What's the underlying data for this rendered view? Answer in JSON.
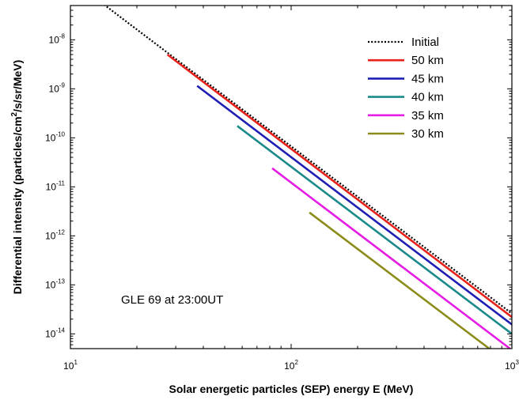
{
  "chart_data": {
    "type": "line",
    "xlabel": "Solar energetic particles (SEP) energy E (MeV)",
    "ylabel": {
      "before": "Differential intensity (particles/cm",
      "sup": "2",
      "after": "/s/sr/MeV)"
    },
    "xscale": "log",
    "yscale": "log",
    "xlim": [
      10,
      1000
    ],
    "ylim": [
      5e-15,
      5e-08
    ],
    "x_ticks": [
      {
        "value": 10,
        "base": "10",
        "exp": "1"
      },
      {
        "value": 100,
        "base": "10",
        "exp": "2"
      },
      {
        "value": 1000,
        "base": "10",
        "exp": "3"
      }
    ],
    "y_ticks": [
      {
        "value": 1e-08,
        "base": "10",
        "exp": "-8"
      },
      {
        "value": 1e-09,
        "base": "10",
        "exp": "-9"
      },
      {
        "value": 1e-10,
        "base": "10",
        "exp": "-10"
      },
      {
        "value": 1e-11,
        "base": "10",
        "exp": "-11"
      },
      {
        "value": 1e-12,
        "base": "10",
        "exp": "-12"
      },
      {
        "value": 1e-13,
        "base": "10",
        "exp": "-13"
      },
      {
        "value": 1e-14,
        "base": "10",
        "exp": "-14"
      }
    ],
    "grid": false,
    "legend_position": "top-right",
    "annotation": "GLE 69 at 23:00UT",
    "series": [
      {
        "name": "Initial",
        "color": "#000000",
        "dash": "dotted",
        "x": [
          14.2,
          1000
        ],
        "y": [
          5.2e-08,
          2.6e-14
        ]
      },
      {
        "name": "50 km",
        "color": "#e8211b",
        "dash": "solid",
        "x": [
          27.5,
          1000
        ],
        "y": [
          5e-09,
          2.2e-14
        ]
      },
      {
        "name": "45 km",
        "color": "#1f1fb4",
        "dash": "solid",
        "x": [
          37.5,
          1000
        ],
        "y": [
          1.15e-09,
          1.55e-14
        ]
      },
      {
        "name": "40 km",
        "color": "#1a8a8a",
        "dash": "solid",
        "x": [
          57,
          1000
        ],
        "y": [
          1.75e-10,
          1e-14
        ]
      },
      {
        "name": "35 km",
        "color": "#e51de5",
        "dash": "solid",
        "x": [
          82,
          980
        ],
        "y": [
          2.4e-11,
          5e-15
        ]
      },
      {
        "name": "30 km",
        "color": "#8c8c1a",
        "dash": "solid",
        "x": [
          121,
          790
        ],
        "y": [
          3e-12,
          5e-15
        ]
      }
    ]
  }
}
